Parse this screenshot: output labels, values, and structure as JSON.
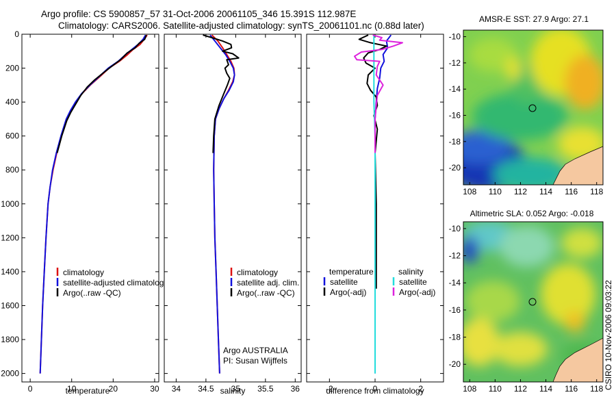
{
  "title_line1": "Argo profile: CS 5900857_57 31-Oct-2006 20061105_346 15.391S 112.987E",
  "title_line2": "Climatology: CARS2006. Satellite-adjusted climatology: synTS_20061101.nc (0.88d later)",
  "side_label": "CSIRO 10-Nov-2006 09:03:22",
  "chart_data": [
    {
      "type": "line",
      "id": "temperature",
      "xlabel": "temperature",
      "ylabel": "",
      "xlim": [
        -2,
        31
      ],
      "ylim": [
        2050,
        0
      ],
      "xticks": [
        0,
        10,
        20,
        30
      ],
      "yticks": [
        0,
        200,
        400,
        600,
        800,
        1000,
        1200,
        1400,
        1600,
        1800,
        2000
      ],
      "legend": [
        {
          "label": "climatology",
          "color": "#dd1111"
        },
        {
          "label": "satellite-adjusted climatology",
          "color": "#1111dd"
        },
        {
          "label": "Argo(..raw -QC)",
          "color": "#000000"
        }
      ],
      "series": [
        {
          "name": "climatology",
          "color": "#dd1111",
          "points": [
            [
              28.2,
              5
            ],
            [
              27.5,
              30
            ],
            [
              26.5,
              60
            ],
            [
              24.8,
              90
            ],
            [
              23.5,
              120
            ],
            [
              21.5,
              160
            ],
            [
              19,
              200
            ],
            [
              16.8,
              250
            ],
            [
              14.5,
              300
            ],
            [
              12.5,
              350
            ],
            [
              11,
              400
            ],
            [
              9.8,
              450
            ],
            [
              8.8,
              500
            ],
            [
              7.5,
              600
            ],
            [
              6.4,
              700
            ],
            [
              5.5,
              800
            ],
            [
              4.8,
              900
            ],
            [
              4.3,
              1000
            ],
            [
              3.8,
              1200
            ],
            [
              3.4,
              1400
            ],
            [
              3,
              1600
            ],
            [
              2.7,
              1800
            ],
            [
              2.4,
              2000
            ]
          ]
        },
        {
          "name": "satellite-adjusted climatology",
          "color": "#1111dd",
          "points": [
            [
              27.8,
              5
            ],
            [
              27.2,
              30
            ],
            [
              26,
              60
            ],
            [
              24.5,
              90
            ],
            [
              23,
              120
            ],
            [
              21.2,
              160
            ],
            [
              18.8,
              200
            ],
            [
              16.6,
              250
            ],
            [
              14.4,
              300
            ],
            [
              12.4,
              350
            ],
            [
              10.9,
              400
            ],
            [
              9.7,
              450
            ],
            [
              8.7,
              500
            ],
            [
              7.4,
              600
            ],
            [
              6.3,
              700
            ],
            [
              5.4,
              800
            ],
            [
              4.8,
              900
            ],
            [
              4.3,
              1000
            ],
            [
              3.8,
              1200
            ],
            [
              3.4,
              1400
            ],
            [
              3,
              1600
            ],
            [
              2.7,
              1800
            ],
            [
              2.4,
              2000
            ]
          ]
        },
        {
          "name": "Argo(..raw -QC)",
          "color": "#000000",
          "points": [
            [
              28,
              5
            ],
            [
              27.6,
              30
            ],
            [
              26.2,
              55
            ],
            [
              25.3,
              80
            ],
            [
              23.4,
              110
            ],
            [
              21.8,
              150
            ],
            [
              19.6,
              190
            ],
            [
              17.5,
              230
            ],
            [
              15.5,
              270
            ],
            [
              13.8,
              310
            ],
            [
              12.2,
              360
            ],
            [
              11,
              410
            ],
            [
              9.8,
              460
            ],
            [
              8.8,
              510
            ],
            [
              7.6,
              600
            ],
            [
              6.5,
              700
            ]
          ]
        }
      ]
    },
    {
      "type": "line",
      "id": "salinity",
      "xlabel": "salinity",
      "ylabel": "",
      "xlim": [
        33.8,
        36.1
      ],
      "ylim": [
        2050,
        0
      ],
      "xticks": [
        34,
        34.5,
        35,
        35.5,
        36
      ],
      "legend": [
        {
          "label": "climatology",
          "color": "#dd1111"
        },
        {
          "label": "satellite adj. clim.",
          "color": "#1111dd"
        },
        {
          "label": "Argo(..raw -QC)",
          "color": "#000000"
        }
      ],
      "annotation": [
        "Argo AUSTRALIA",
        "PI: Susan Wijffels"
      ],
      "series": [
        {
          "name": "climatology",
          "color": "#dd1111",
          "points": [
            [
              34.6,
              5
            ],
            [
              34.7,
              40
            ],
            [
              34.78,
              80
            ],
            [
              34.85,
              120
            ],
            [
              34.92,
              160
            ],
            [
              34.97,
              200
            ],
            [
              34.98,
              240
            ],
            [
              34.95,
              280
            ],
            [
              34.88,
              330
            ],
            [
              34.8,
              380
            ],
            [
              34.72,
              440
            ],
            [
              34.66,
              500
            ],
            [
              34.64,
              600
            ],
            [
              34.63,
              800
            ],
            [
              34.64,
              1000
            ],
            [
              34.65,
              1200
            ],
            [
              34.67,
              1400
            ],
            [
              34.69,
              1600
            ],
            [
              34.71,
              1800
            ],
            [
              34.73,
              2000
            ]
          ]
        },
        {
          "name": "satellite adj. clim.",
          "color": "#1111dd",
          "points": [
            [
              34.57,
              5
            ],
            [
              34.65,
              40
            ],
            [
              34.74,
              80
            ],
            [
              34.83,
              120
            ],
            [
              34.9,
              160
            ],
            [
              34.96,
              200
            ],
            [
              34.98,
              240
            ],
            [
              34.96,
              280
            ],
            [
              34.89,
              330
            ],
            [
              34.8,
              380
            ],
            [
              34.72,
              440
            ],
            [
              34.66,
              500
            ],
            [
              34.64,
              600
            ],
            [
              34.63,
              800
            ],
            [
              34.64,
              1000
            ],
            [
              34.65,
              1200
            ],
            [
              34.67,
              1400
            ],
            [
              34.69,
              1600
            ],
            [
              34.71,
              1800
            ],
            [
              34.73,
              2000
            ]
          ]
        },
        {
          "name": "Argo(..raw -QC)",
          "color": "#000000",
          "points": [
            [
              34.45,
              5
            ],
            [
              34.6,
              20
            ],
            [
              34.78,
              40
            ],
            [
              34.92,
              60
            ],
            [
              34.93,
              80
            ],
            [
              34.78,
              100
            ],
            [
              34.95,
              115
            ],
            [
              35.05,
              140
            ],
            [
              34.85,
              150
            ],
            [
              34.88,
              180
            ],
            [
              34.82,
              200
            ],
            [
              34.85,
              230
            ],
            [
              34.9,
              260
            ],
            [
              34.86,
              300
            ],
            [
              34.8,
              350
            ],
            [
              34.72,
              420
            ],
            [
              34.65,
              500
            ],
            [
              34.63,
              600
            ],
            [
              34.62,
              700
            ]
          ]
        }
      ]
    },
    {
      "type": "line",
      "id": "difference",
      "xlabel": "difference from climatology",
      "ylabel": "",
      "xlim": [
        -3,
        3
      ],
      "ylim": [
        2050,
        0
      ],
      "xticks": [
        -2,
        0,
        2
      ],
      "legend_left_title": "temperature",
      "legend_right_title": "salinity",
      "legend_left": [
        {
          "label": "satellite",
          "color": "#1111dd"
        },
        {
          "label": "Argo(-adj)",
          "color": "#000000"
        }
      ],
      "legend_right": [
        {
          "label": "satellite",
          "color": "#22dddd"
        },
        {
          "label": "Argo(-adj)",
          "color": "#dd22dd"
        }
      ],
      "series": [
        {
          "name": "temperature satellite",
          "color": "#1111dd",
          "points": [
            [
              0.7,
              5
            ],
            [
              0.5,
              40
            ],
            [
              0.55,
              80
            ],
            [
              0.35,
              120
            ],
            [
              0.4,
              160
            ],
            [
              0.25,
              200
            ],
            [
              0.2,
              260
            ],
            [
              0.1,
              320
            ],
            [
              0.05,
              400
            ],
            [
              0,
              500
            ],
            [
              0,
              700
            ],
            [
              0,
              1000
            ],
            [
              0,
              1500
            ],
            [
              0,
              2000
            ]
          ]
        },
        {
          "name": "temperature Argo(-adj)",
          "color": "#000000",
          "points": [
            [
              -0.3,
              5
            ],
            [
              -0.7,
              30
            ],
            [
              -0.2,
              50
            ],
            [
              0.5,
              70
            ],
            [
              0.2,
              90
            ],
            [
              -0.3,
              110
            ],
            [
              -0.5,
              140
            ],
            [
              -0.4,
              170
            ],
            [
              0,
              200
            ],
            [
              -0.3,
              240
            ],
            [
              -0.35,
              290
            ],
            [
              -0.2,
              330
            ],
            [
              0.05,
              370
            ],
            [
              0.1,
              420
            ],
            [
              -0.05,
              480
            ],
            [
              0.1,
              560
            ],
            [
              0,
              700
            ],
            [
              0.05,
              1000
            ],
            [
              0.05,
              1500
            ]
          ]
        },
        {
          "name": "salinity satellite",
          "color": "#22dddd",
          "points": [
            [
              -0.05,
              5
            ],
            [
              -0.05,
              200
            ],
            [
              -0.05,
              400
            ],
            [
              0,
              600
            ],
            [
              0,
              1000
            ],
            [
              0,
              1500
            ],
            [
              0,
              2000
            ]
          ]
        },
        {
          "name": "salinity Argo(-adj)",
          "color": "#dd22dd",
          "points": [
            [
              -0.1,
              5
            ],
            [
              0.3,
              20
            ],
            [
              0.2,
              35
            ],
            [
              1.2,
              50
            ],
            [
              0.8,
              70
            ],
            [
              0.3,
              90
            ],
            [
              -0.6,
              105
            ],
            [
              -0.9,
              130
            ],
            [
              -0.8,
              150
            ],
            [
              0.2,
              160
            ],
            [
              0.1,
              190
            ],
            [
              0.05,
              240
            ],
            [
              0.35,
              300
            ],
            [
              0.1,
              360
            ],
            [
              0.05,
              420
            ],
            [
              0,
              500
            ],
            [
              0,
              600
            ],
            [
              0,
              700
            ]
          ]
        }
      ]
    },
    {
      "type": "heatmap",
      "id": "sst-map",
      "title": "AMSR-E SST: 27.9 Argo: 27.1",
      "xlim": [
        107.5,
        118.5
      ],
      "ylim": [
        -21.3,
        -9.5
      ],
      "xticks": [
        108,
        110,
        112,
        114,
        116,
        118
      ],
      "yticks": [
        -10,
        -12,
        -14,
        -16,
        -18,
        -20
      ],
      "marker": {
        "lon": 112.987,
        "lat": -15.391
      }
    },
    {
      "type": "heatmap",
      "id": "sla-map",
      "title": "Altimetric SLA: 0.052 Argo: -0.018",
      "xlim": [
        107.5,
        118.5
      ],
      "ylim": [
        -21.3,
        -9.5
      ],
      "xticks": [
        108,
        110,
        112,
        114,
        116,
        118
      ],
      "yticks": [
        -10,
        -12,
        -14,
        -16,
        -18,
        -20
      ],
      "marker": {
        "lon": 112.987,
        "lat": -15.391
      }
    }
  ]
}
